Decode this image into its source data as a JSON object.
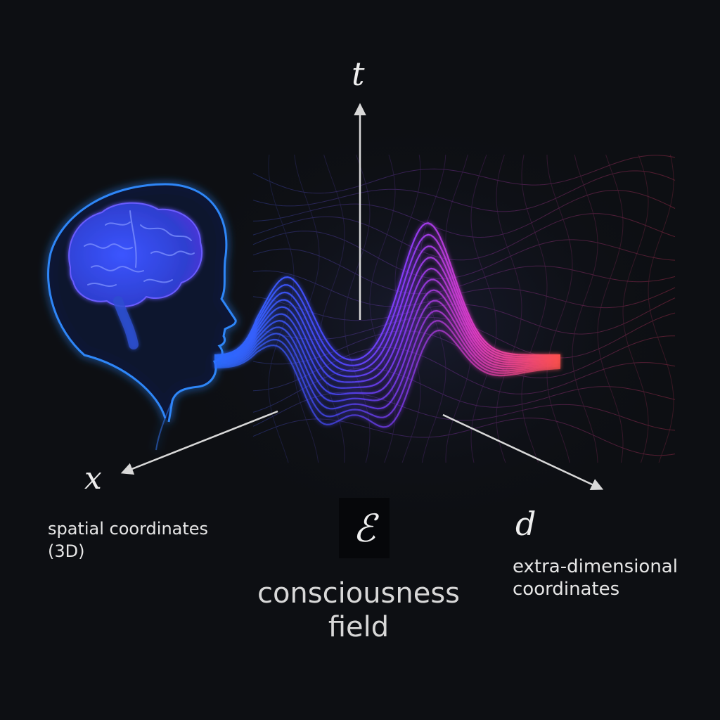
{
  "axes": {
    "t": "t",
    "x": "x",
    "d": "d"
  },
  "symbol": "ℰ",
  "labels": {
    "spatial_line1": "spatial coordinates",
    "spatial_line2": "(3D)",
    "field_line1": "consciousness",
    "field_line2": "field",
    "extra_line1": "extra-dimensional",
    "extra_line2": "coordinates"
  },
  "colors": {
    "background": "#0d0f13",
    "head_glow": "#2f7bff",
    "wave_blue": "#2f6bff",
    "wave_violet": "#8a3bff",
    "wave_pink": "#ff3f8a",
    "wave_red": "#ff5a4a",
    "axis": "#d9d9d9"
  },
  "icons": {
    "head": "human-head-profile-icon",
    "brain": "brain-icon"
  }
}
